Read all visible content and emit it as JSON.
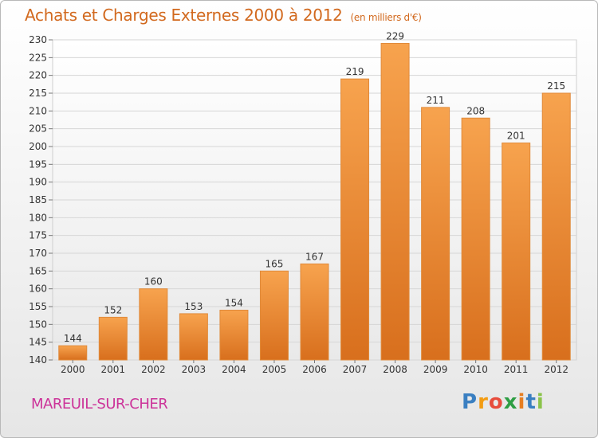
{
  "header": {
    "title": "Achats et Charges Externes 2000 à 2012",
    "unit": "(en milliers d'€)"
  },
  "footer": {
    "place": "MAREUIL-SUR-CHER",
    "logo_letters": [
      "P",
      "r",
      "o",
      "x",
      "i",
      "t",
      "i"
    ],
    "logo_colors": [
      "#3a7fc1",
      "#f39c12",
      "#e74c3c",
      "#2e9e44",
      "#e67e22",
      "#3a7fc1",
      "#8bc34a"
    ]
  },
  "chart_data": {
    "type": "bar",
    "title": "Achats et Charges Externes 2000 à 2012",
    "subtitle": "(en milliers d'€)",
    "categories": [
      "2000",
      "2001",
      "2002",
      "2003",
      "2004",
      "2005",
      "2006",
      "2007",
      "2008",
      "2009",
      "2010",
      "2011",
      "2012"
    ],
    "values": [
      144,
      152,
      160,
      153,
      154,
      165,
      167,
      219,
      229,
      211,
      208,
      201,
      215
    ],
    "ylim": [
      140,
      230
    ],
    "yticks": [
      140,
      145,
      150,
      155,
      160,
      165,
      170,
      175,
      180,
      185,
      190,
      195,
      200,
      205,
      210,
      215,
      220,
      225,
      230
    ],
    "grid": true,
    "bar_color_top": "#f7a34e",
    "bar_color_bottom": "#d86f1d",
    "data_labels": true
  }
}
